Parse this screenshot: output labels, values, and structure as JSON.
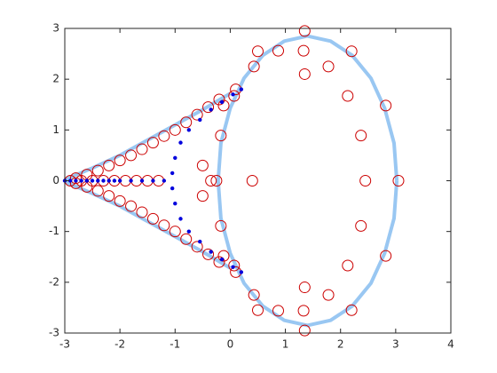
{
  "chart_data": {
    "type": "scatter",
    "xlim": [
      -3,
      4
    ],
    "ylim": [
      -3,
      3
    ],
    "xticks": [
      -3,
      -2,
      -1,
      0,
      1,
      2,
      3,
      4
    ],
    "yticks": [
      -3,
      -2,
      -1,
      0,
      1,
      2,
      3
    ],
    "series": [
      {
        "marker": "line",
        "color": "#99c7f2",
        "x": [
          -3,
          -2.5,
          -2,
          -1.5,
          -1,
          -0.5,
          0,
          null,
          -3,
          -2.5,
          -2,
          -1.5,
          -1,
          -0.5,
          0,
          null,
          3.02,
          2.97,
          2.8,
          2.55,
          2.21,
          1.82,
          1.4,
          0.98,
          0.59,
          0.25,
          0,
          -0.17,
          -0.22,
          -0.17,
          0,
          0.25,
          0.59,
          0.98,
          1.4,
          1.82,
          2.21,
          2.55,
          2.8,
          2.97,
          3.02
        ],
        "y": [
          0.02,
          0.25,
          0.5,
          0.8,
          1.1,
          1.4,
          1.72,
          null,
          -0.02,
          -0.25,
          -0.5,
          -0.8,
          -1.1,
          -1.4,
          -1.72,
          null,
          0,
          0.74,
          1.43,
          2.02,
          2.47,
          2.75,
          2.85,
          2.75,
          2.47,
          2.02,
          1.43,
          0.74,
          0,
          -0.74,
          -1.43,
          -2.02,
          -2.47,
          -2.75,
          -2.85,
          -2.75,
          -2.47,
          -2.02,
          -1.43,
          -0.74,
          0
        ]
      },
      {
        "marker": "circle",
        "color": "#cc0000",
        "x": [
          -2.8,
          -2.6,
          -2.4,
          -2.2,
          -2.0,
          -1.8,
          -1.6,
          -1.4,
          -1.2,
          -1.0,
          -0.8,
          -0.6,
          -0.4,
          -0.2,
          0.1,
          -2.8,
          -2.6,
          -2.4,
          -2.2,
          -2.0,
          -1.8,
          -1.6,
          -1.4,
          -1.2,
          -1.0,
          -0.8,
          -0.6,
          -0.4,
          -0.2,
          0.1,
          -2.9,
          -2.7,
          -2.5,
          -2.3,
          -2.1,
          -1.9,
          -1.7,
          -1.5,
          -1.3,
          2.45,
          2.37,
          2.13,
          1.78,
          1.33,
          0.87,
          0.43,
          0.07,
          -0.17,
          -0.25,
          -0.17,
          0.07,
          0.43,
          0.87,
          1.33,
          1.78,
          2.13,
          2.37,
          3.05,
          2.82,
          2.2,
          1.35,
          0.5,
          -0.12,
          -0.35,
          -0.12,
          0.5,
          1.35,
          2.2,
          2.82,
          1.35,
          1.35,
          0.4,
          -0.5,
          -0.5
        ],
        "y": [
          0.05,
          0.12,
          0.2,
          0.3,
          0.4,
          0.5,
          0.62,
          0.75,
          0.88,
          1.0,
          1.15,
          1.3,
          1.45,
          1.6,
          1.8,
          -0.05,
          -0.12,
          -0.2,
          -0.3,
          -0.4,
          -0.5,
          -0.62,
          -0.75,
          -0.88,
          -1.0,
          -1.15,
          -1.3,
          -1.45,
          -1.6,
          -1.8,
          0,
          0,
          0,
          0,
          0,
          0,
          0,
          0,
          0,
          0,
          0.89,
          1.67,
          2.25,
          2.56,
          2.56,
          2.25,
          1.67,
          0.89,
          0,
          -0.89,
          -1.67,
          -2.25,
          -2.56,
          -2.56,
          -2.25,
          -1.67,
          -0.89,
          0,
          1.48,
          2.55,
          2.95,
          2.55,
          1.48,
          0,
          -1.48,
          -2.55,
          -2.95,
          -2.55,
          -1.48,
          2.1,
          -2.1,
          0,
          0.3,
          -0.3
        ]
      },
      {
        "marker": "dot",
        "color": "#0000dd",
        "x": [
          -3,
          -2.9,
          -2.8,
          -2.7,
          -2.6,
          -2.5,
          -2.4,
          -2.3,
          -2.2,
          -2.1,
          -2.0,
          -1.8,
          -1.6,
          -1.4,
          -1.2,
          -1.05,
          -1.0,
          -0.9,
          -0.75,
          -0.55,
          -0.35,
          -0.15,
          0.05,
          0.2,
          -1.05,
          -1.0,
          -0.9,
          -0.75,
          -0.55,
          -0.35,
          -0.15,
          0.05,
          0.2
        ],
        "y": [
          0,
          0,
          0,
          0,
          0,
          0,
          0,
          0,
          0,
          0,
          0,
          0,
          0,
          0,
          0,
          0.15,
          0.45,
          0.75,
          1.0,
          1.2,
          1.4,
          1.55,
          1.7,
          1.8,
          -0.15,
          -0.45,
          -0.75,
          -1.0,
          -1.2,
          -1.4,
          -1.55,
          -1.7,
          -1.8
        ]
      }
    ]
  }
}
